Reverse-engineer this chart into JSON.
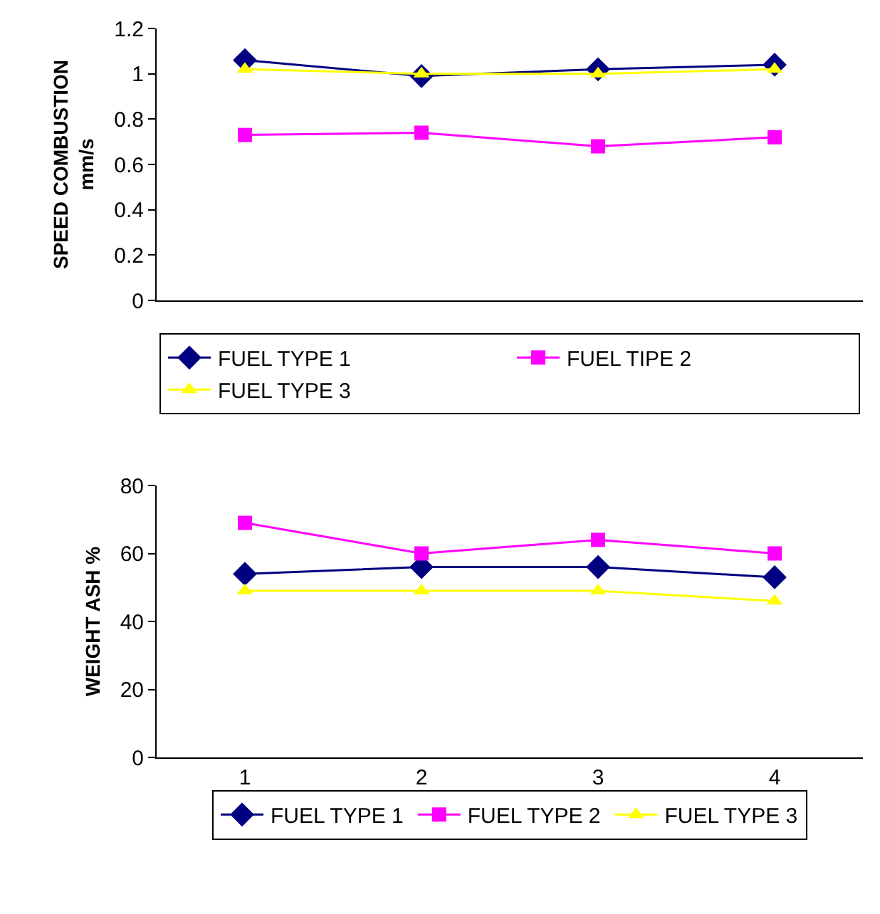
{
  "chart_data": [
    {
      "type": "line",
      "ylabel": "SPEED COMBUSTION mm/s",
      "categories": [
        null,
        null,
        null,
        null
      ],
      "ylim": [
        0,
        1.2
      ],
      "yticks": [
        0,
        0.2,
        0.4,
        0.6,
        0.8,
        1,
        1.2
      ],
      "grid": false,
      "legend": "bottom",
      "line_style": "solid",
      "series": [
        {
          "name": "FUEL TYPE 1",
          "color": "#000080",
          "marker": "diamond",
          "values": [
            1.06,
            0.99,
            1.02,
            1.04
          ]
        },
        {
          "name": "FUEL TIPE 2",
          "color": "#ff00ff",
          "marker": "square",
          "values": [
            0.73,
            0.74,
            0.68,
            0.72
          ]
        },
        {
          "name": "FUEL TYPE 3",
          "color": "#ffff00",
          "marker": "triangle",
          "values": [
            1.02,
            1.0,
            1.0,
            1.02
          ]
        }
      ]
    },
    {
      "type": "line",
      "ylabel": "WEIGHT ASH %",
      "categories": [
        "1",
        "2",
        "3",
        "4"
      ],
      "ylim": [
        0,
        80
      ],
      "yticks": [
        0,
        20,
        40,
        60,
        80
      ],
      "grid": false,
      "legend": "bottom",
      "line_style": "solid",
      "series": [
        {
          "name": "FUEL TYPE 1",
          "color": "#000080",
          "marker": "diamond",
          "values": [
            54,
            56,
            56,
            53
          ]
        },
        {
          "name": "FUEL TYPE 2",
          "color": "#ff00ff",
          "marker": "square",
          "values": [
            69,
            60,
            64,
            60
          ]
        },
        {
          "name": "FUEL TYPE 3",
          "color": "#ffff00",
          "marker": "triangle",
          "values": [
            49,
            49,
            49,
            46
          ]
        }
      ]
    }
  ]
}
